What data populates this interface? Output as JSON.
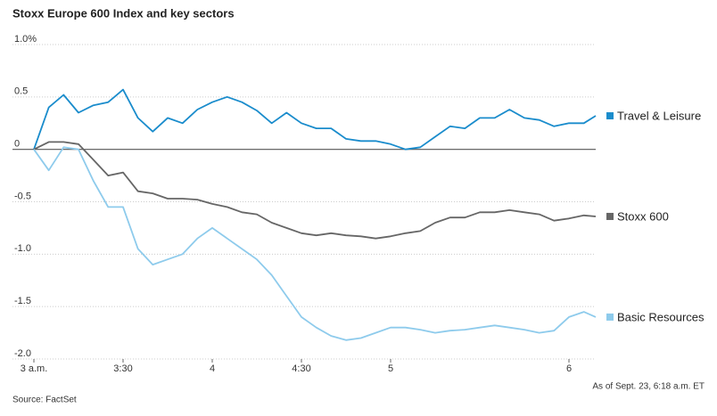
{
  "chart_data": {
    "type": "line",
    "title": "Stoxx Europe 600 Index and key sectors",
    "x": [
      0,
      5,
      10,
      15,
      20,
      25,
      30,
      35,
      40,
      45,
      50,
      55,
      60,
      65,
      70,
      75,
      80,
      85,
      90,
      95,
      100,
      105,
      110,
      115,
      120,
      125,
      130,
      135,
      140,
      145,
      150,
      155,
      160,
      165,
      170,
      175,
      180,
      185,
      189
    ],
    "series": [
      {
        "name": "Travel & Leisure",
        "color": "#1a8ccc",
        "values": [
          0,
          0.4,
          0.52,
          0.35,
          0.42,
          0.45,
          0.57,
          0.3,
          0.17,
          0.3,
          0.25,
          0.38,
          0.45,
          0.5,
          0.45,
          0.37,
          0.25,
          0.35,
          0.25,
          0.2,
          0.2,
          0.1,
          0.08,
          0.08,
          0.05,
          0.0,
          0.02,
          0.12,
          0.22,
          0.2,
          0.3,
          0.3,
          0.38,
          0.3,
          0.28,
          0.22,
          0.25,
          0.25,
          0.32
        ]
      },
      {
        "name": "Stoxx 600",
        "color": "#666666",
        "values": [
          0,
          0.07,
          0.07,
          0.05,
          -0.1,
          -0.25,
          -0.22,
          -0.4,
          -0.42,
          -0.47,
          -0.47,
          -0.48,
          -0.52,
          -0.55,
          -0.6,
          -0.62,
          -0.7,
          -0.75,
          -0.8,
          -0.82,
          -0.8,
          -0.82,
          -0.83,
          -0.85,
          -0.83,
          -0.8,
          -0.78,
          -0.7,
          -0.65,
          -0.65,
          -0.6,
          -0.6,
          -0.58,
          -0.6,
          -0.62,
          -0.68,
          -0.66,
          -0.63,
          -0.64
        ]
      },
      {
        "name": "Basic Resources",
        "color": "#8ecbec",
        "values": [
          0,
          -0.2,
          0.02,
          0,
          -0.3,
          -0.55,
          -0.55,
          -0.95,
          -1.1,
          -1.05,
          -1.0,
          -0.85,
          -0.75,
          -0.85,
          -0.95,
          -1.05,
          -1.2,
          -1.4,
          -1.6,
          -1.7,
          -1.78,
          -1.82,
          -1.8,
          -1.75,
          -1.7,
          -1.7,
          -1.72,
          -1.75,
          -1.73,
          -1.72,
          -1.7,
          -1.68,
          -1.7,
          -1.72,
          -1.75,
          -1.73,
          -1.6,
          -1.55,
          -1.6
        ]
      }
    ],
    "xlim": [
      0,
      189
    ],
    "xticks": [
      {
        "value": 0,
        "label": "3 a.m."
      },
      {
        "value": 30,
        "label": "3:30"
      },
      {
        "value": 60,
        "label": "4"
      },
      {
        "value": 90,
        "label": "4:30"
      },
      {
        "value": 120,
        "label": "5"
      },
      {
        "value": 180,
        "label": "6"
      }
    ],
    "ylim": [
      -2,
      1
    ],
    "yticks": [
      {
        "value": 1,
        "label": "1.0%"
      },
      0.5,
      0,
      -0.5,
      {
        "value": -1,
        "label": "-1.0"
      },
      -1.5,
      {
        "value": -2,
        "label": "-2.0"
      }
    ],
    "grid": true,
    "source": "Source: FactSet",
    "note": "As of Sept. 23, 6:18 a.m. ET"
  }
}
